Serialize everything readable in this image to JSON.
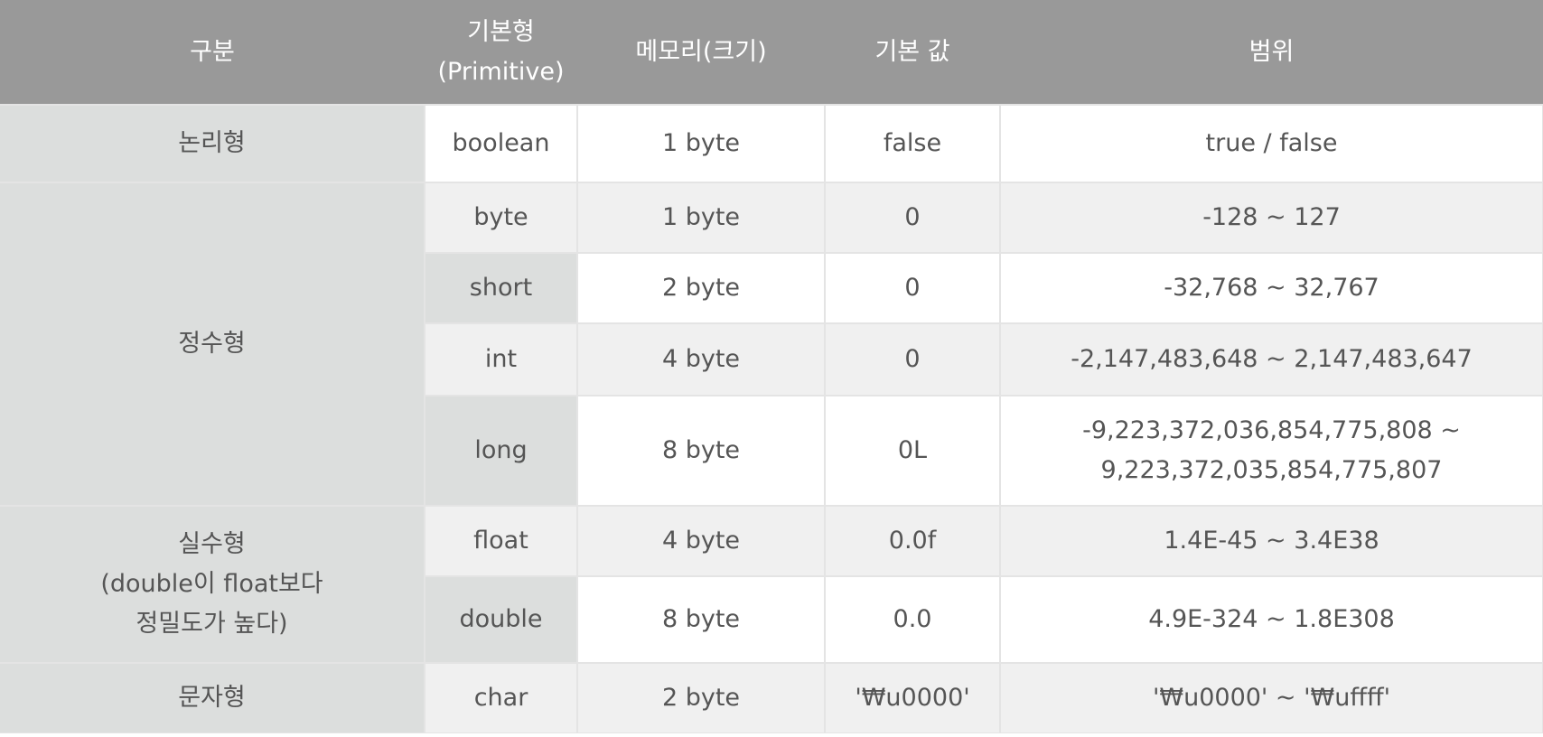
{
  "header": {
    "category": "구분",
    "primitive_line1": "기본형",
    "primitive_line2": "(Primitive)",
    "memory": "메모리(크기)",
    "default": "기본 값",
    "range": "범위"
  },
  "rows": [
    {
      "category": "논리형",
      "primitive": "boolean",
      "memory": "1 byte",
      "default": "false",
      "range": "true / false"
    },
    {
      "category": "정수형",
      "primitive": "byte",
      "memory": "1 byte",
      "default": "0",
      "range": "-128 ~ 127"
    },
    {
      "primitive": "short",
      "memory": "2 byte",
      "default": "0",
      "range": "-32,768 ~ 32,767"
    },
    {
      "primitive": "int",
      "memory": "4 byte",
      "default": "0",
      "range": "-2,147,483,648 ~ 2,147,483,647"
    },
    {
      "primitive": "long",
      "memory": "8 byte",
      "default": "0L",
      "range_line1": "-9,223,372,036,854,775,808 ~",
      "range_line2": "9,223,372,035,854,775,807"
    },
    {
      "category_line1": "실수형",
      "category_line2": "(double이 float보다",
      "category_line3": "정밀도가 높다)",
      "primitive": "float",
      "memory": "4 byte",
      "default": "0.0f",
      "range": "1.4E-45 ~ 3.4E38"
    },
    {
      "primitive": "double",
      "memory": "8 byte",
      "default": "0.0",
      "range": "4.9E-324 ~ 1.8E308"
    },
    {
      "category": "문자형",
      "primitive": "char",
      "memory": "2 byte",
      "default": "'₩u0000'",
      "range": "'₩u0000' ~ '₩uffff'"
    }
  ]
}
